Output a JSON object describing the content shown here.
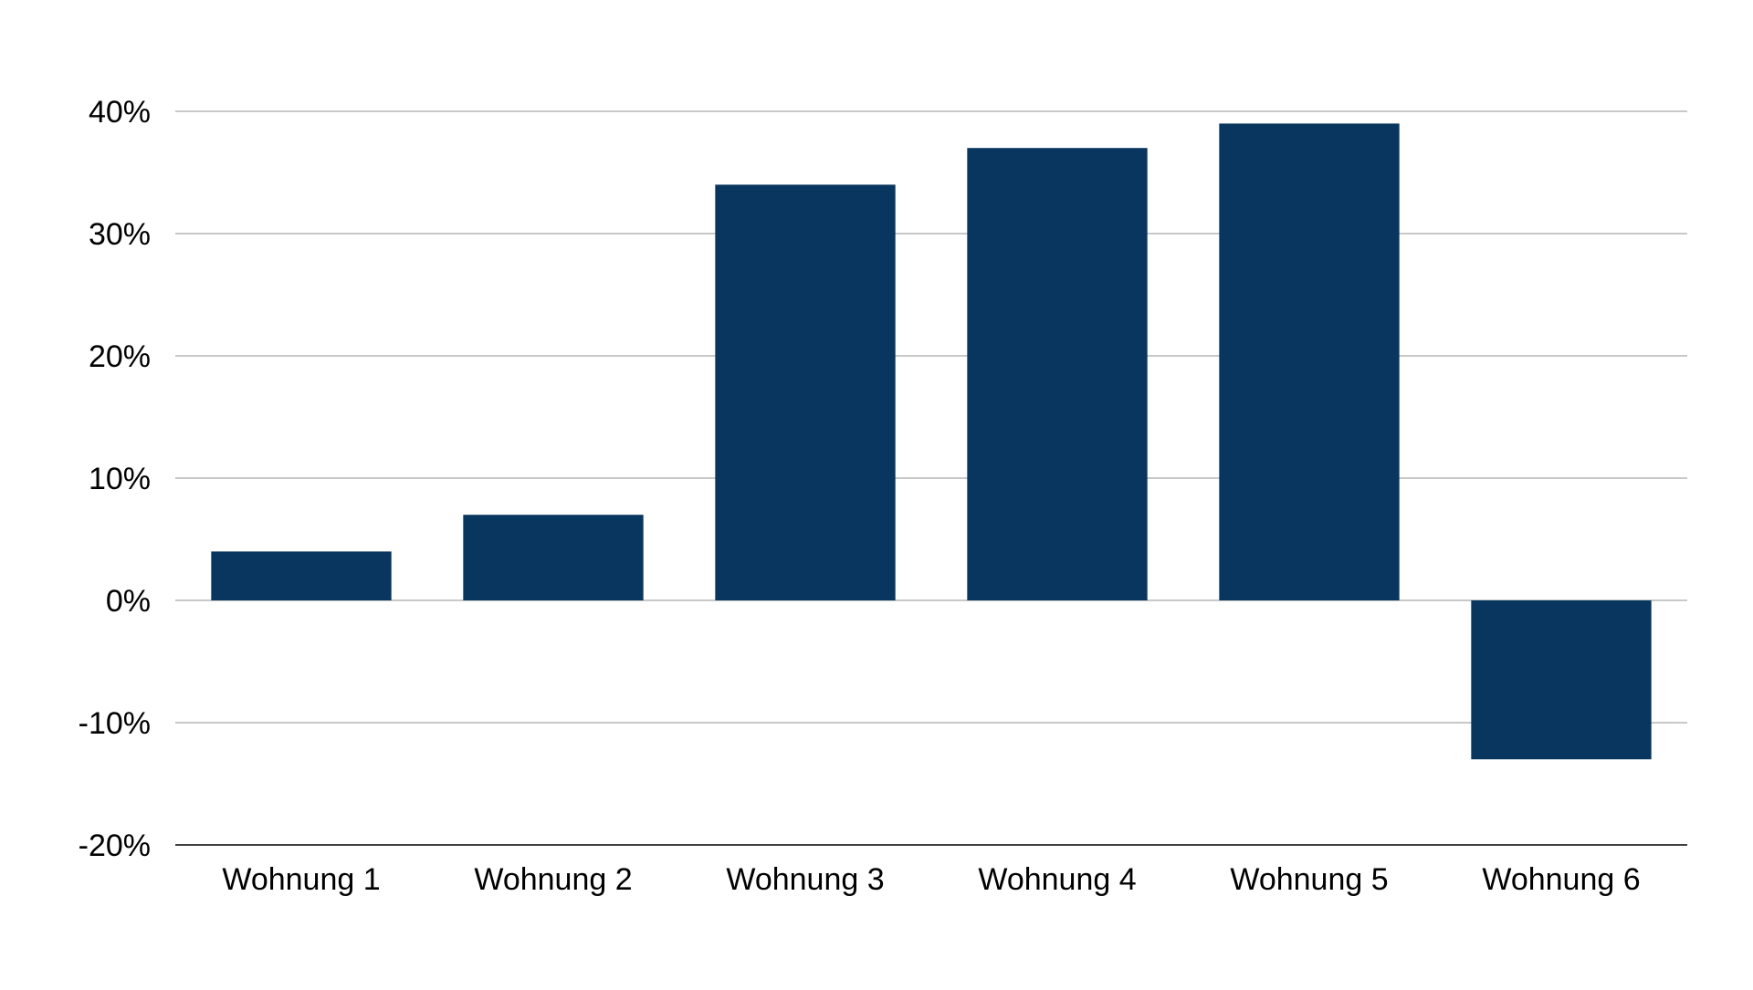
{
  "chart_data": {
    "type": "bar",
    "title": "",
    "xlabel": "",
    "ylabel": "",
    "categories": [
      "Wohnung 1",
      "Wohnung 2",
      "Wohnung 3",
      "Wohnung 4",
      "Wohnung 5",
      "Wohnung 6"
    ],
    "values": [
      4,
      7,
      34,
      37,
      39,
      -13
    ],
    "ylim": [
      -20,
      40
    ],
    "yticks": [
      40,
      30,
      20,
      10,
      0,
      -10,
      -20
    ],
    "ytick_labels": [
      "40%",
      "30%",
      "20%",
      "10%",
      "0%",
      "-10%",
      "-20%"
    ],
    "grid": true,
    "legend": "none",
    "bar_color": "#08365E",
    "grid_color": "#A6A6A6",
    "axis_color": "#000000"
  }
}
